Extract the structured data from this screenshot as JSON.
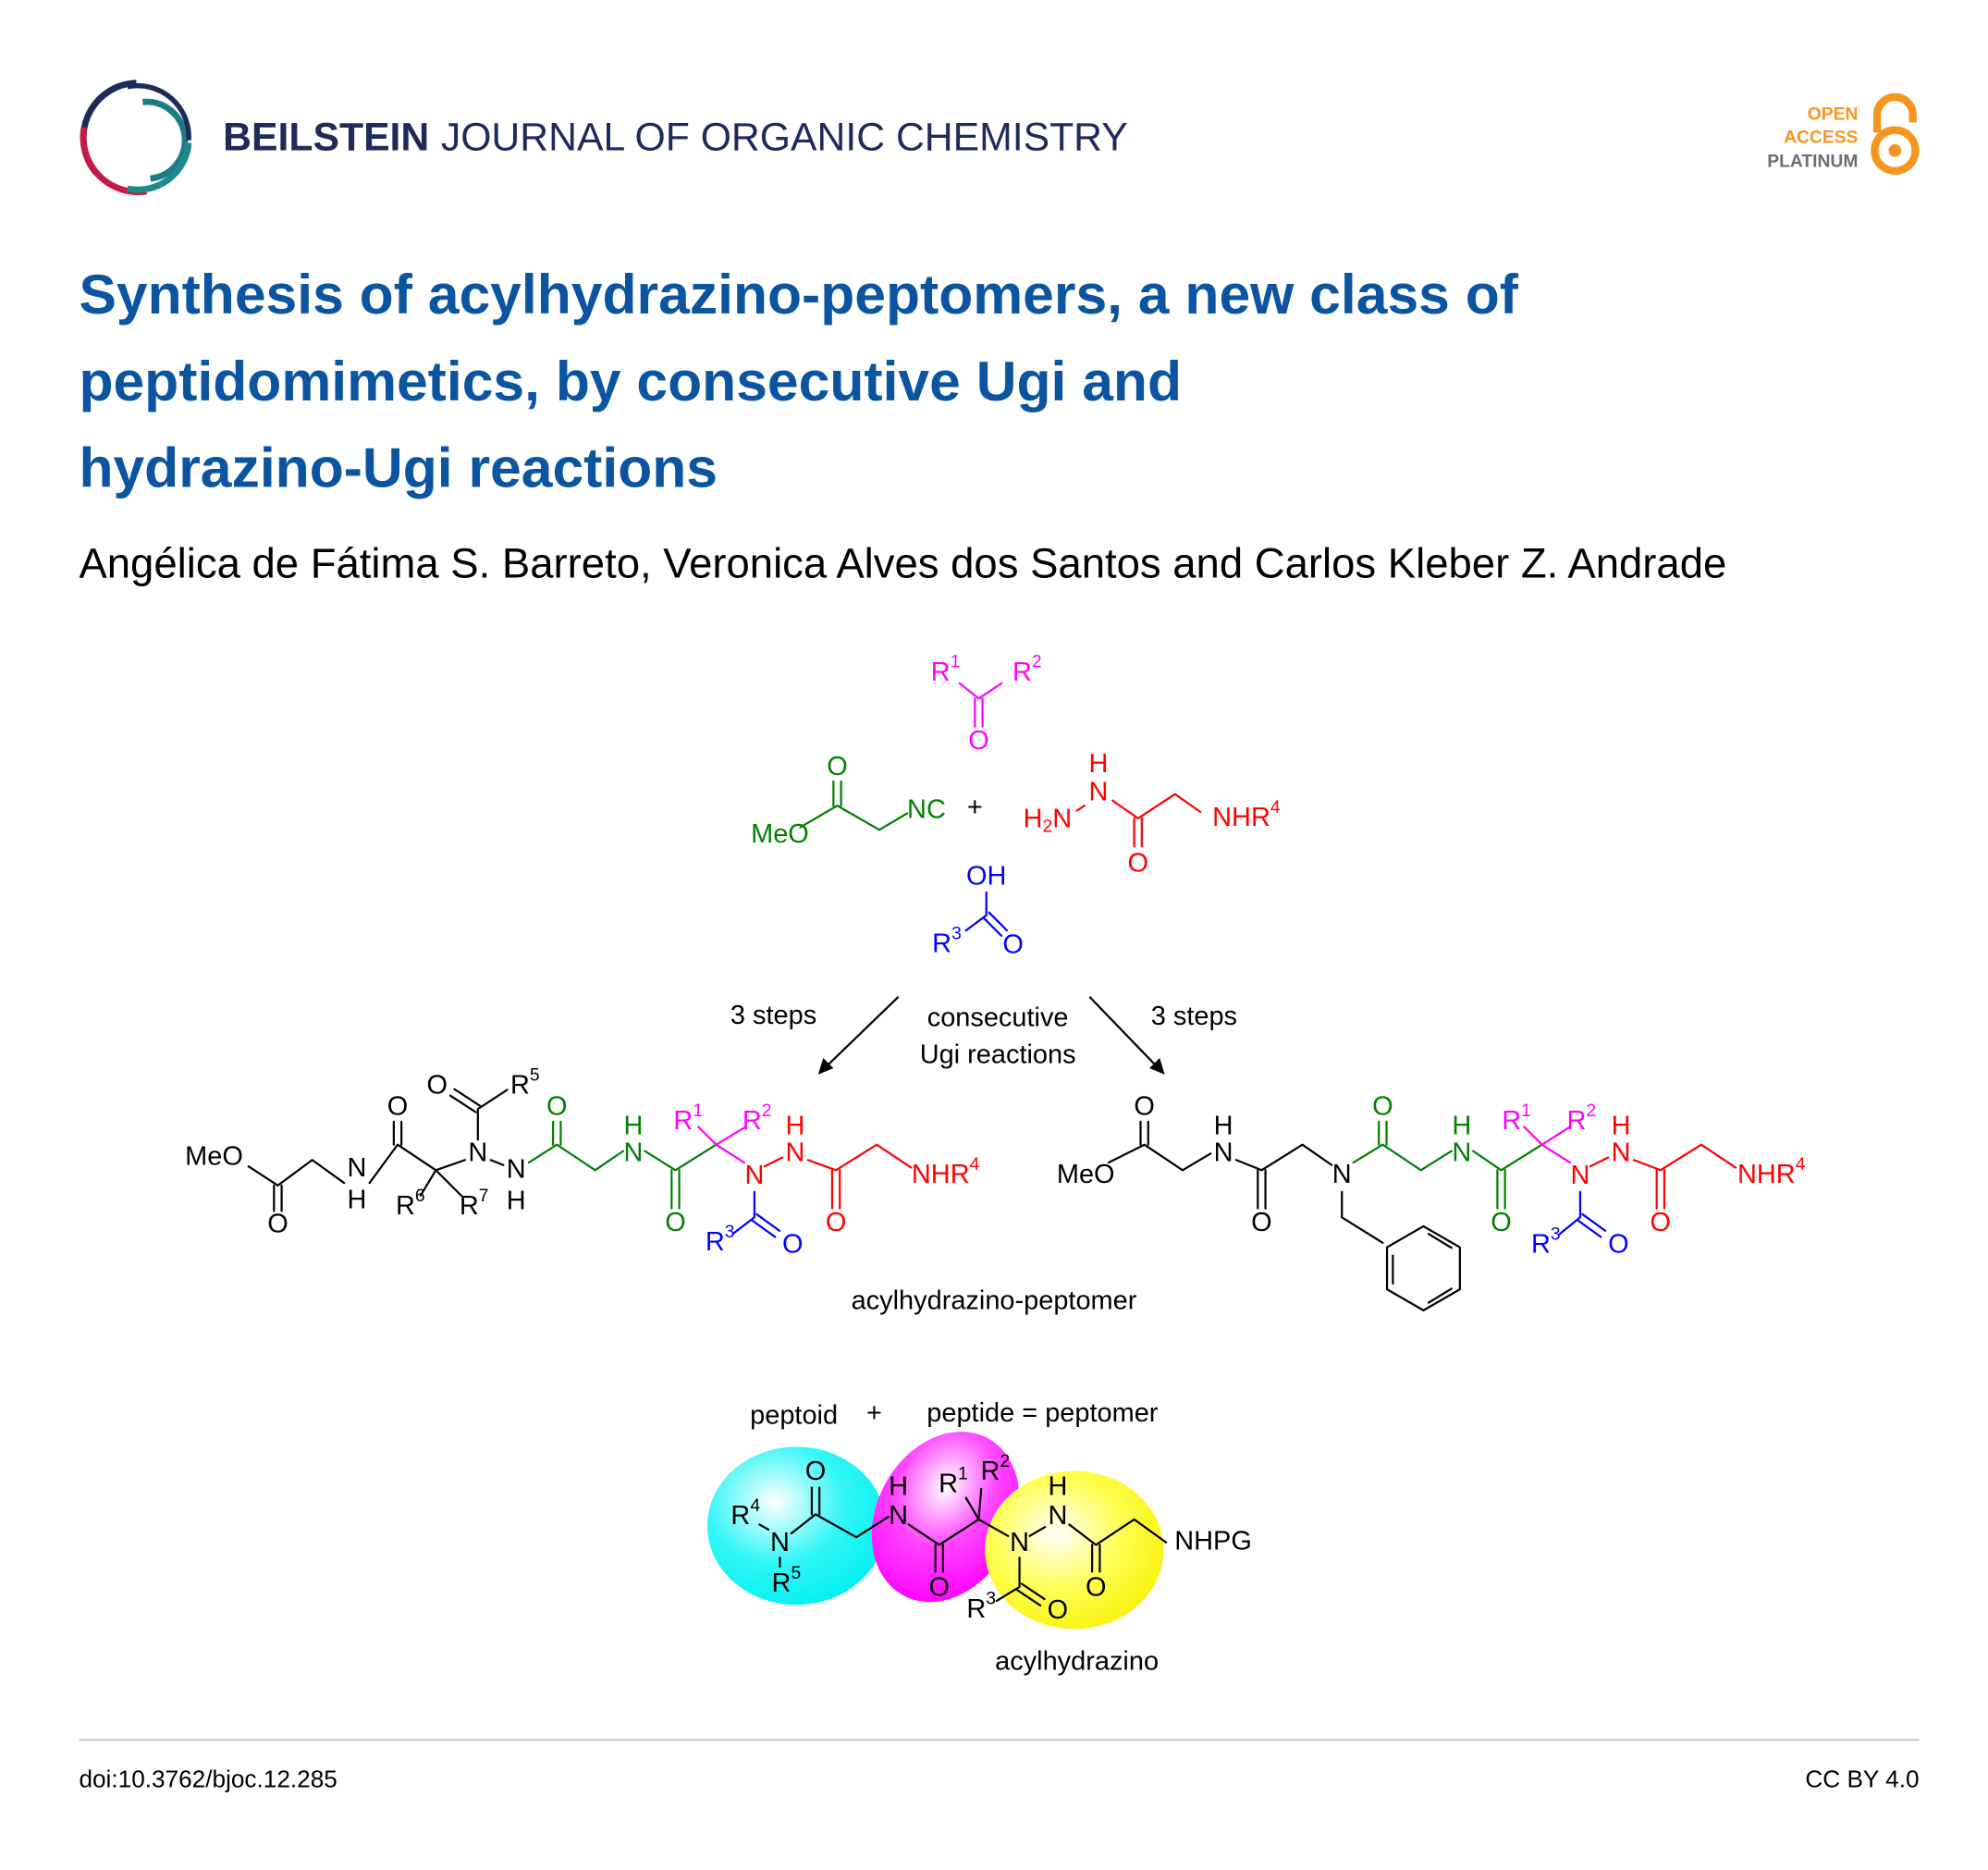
{
  "header": {
    "journal_bold": "BEILSTEIN",
    "journal_light": "JOURNAL OF ORGANIC CHEMISTRY",
    "badge": {
      "line1": "OPEN",
      "line2": "ACCESS",
      "line3": "PLATINUM",
      "icon": "open-access-lock-icon"
    },
    "logo_icon": "beilstein-swirl-logo"
  },
  "title_lines": [
    "Synthesis of acylhydrazino-peptomers, a new class of",
    "peptidomimetics, by consecutive Ugi and",
    "hydrazino-Ugi reactions"
  ],
  "authors": "Angélica de Fátima S. Barreto, Veronica Alves dos Santos and Carlos Kleber Z. Andrade",
  "scheme": {
    "reagents": {
      "ketone": [
        "R^1",
        "R^2",
        "O"
      ],
      "isocyanide": [
        "O",
        "MeO",
        "NC"
      ],
      "plus": "+",
      "hydrazide": [
        "H",
        "N",
        "H_2N",
        "O",
        "NHR^4"
      ],
      "acid": [
        "OH",
        "R^3",
        "O"
      ]
    },
    "left_arrow_label": "3 steps",
    "center_label_1": "consecutive",
    "center_label_2": "Ugi reactions",
    "right_arrow_label": "3 steps",
    "product_left": [
      "MeO",
      "O",
      "N",
      "H",
      "O",
      "O",
      "R^5",
      "N",
      "R^6",
      "R^7",
      "N",
      "H",
      "O",
      "H",
      "N",
      "O",
      "R^1",
      "R^2",
      "N",
      "R^3",
      "O",
      "H",
      "N",
      "O",
      "NHR^4"
    ],
    "product_right": [
      "MeO",
      "O",
      "H",
      "N",
      "O",
      "N",
      "O",
      "H",
      "N",
      "O",
      "R^1",
      "R^2",
      "N",
      "R^3",
      "O",
      "H",
      "N",
      "O",
      "NHR^4"
    ],
    "product_caption": "acylhydrazino-peptomer",
    "concept": {
      "peptoid": "peptoid",
      "plus": "+",
      "peptide_eq": "peptide = peptomer",
      "atoms": [
        "R^4",
        "N",
        "R^5",
        "O",
        "H",
        "N",
        "O",
        "R^1",
        "R^2",
        "N",
        "R^3",
        "O",
        "H",
        "N",
        "O",
        "NHPG"
      ],
      "caption": "acylhydrazino"
    },
    "colors": {
      "isocyanide": "#008000",
      "ketone": "#ff00ff",
      "hydrazide": "#ff0000",
      "acid": "#0000ff",
      "peptoid_blob": "#00f0f0",
      "peptide_blob": "#ff00ff",
      "acylhydrazino_blob": "#ffff00"
    }
  },
  "footer": {
    "doi": "doi:10.3762/bjoc.12.285",
    "license": "CC BY 4.0"
  },
  "colors": {
    "title": "#0b55a0",
    "journal": "#1f2a5c",
    "badge_orange": "#f7941d",
    "badge_gray": "#6d6e71"
  }
}
